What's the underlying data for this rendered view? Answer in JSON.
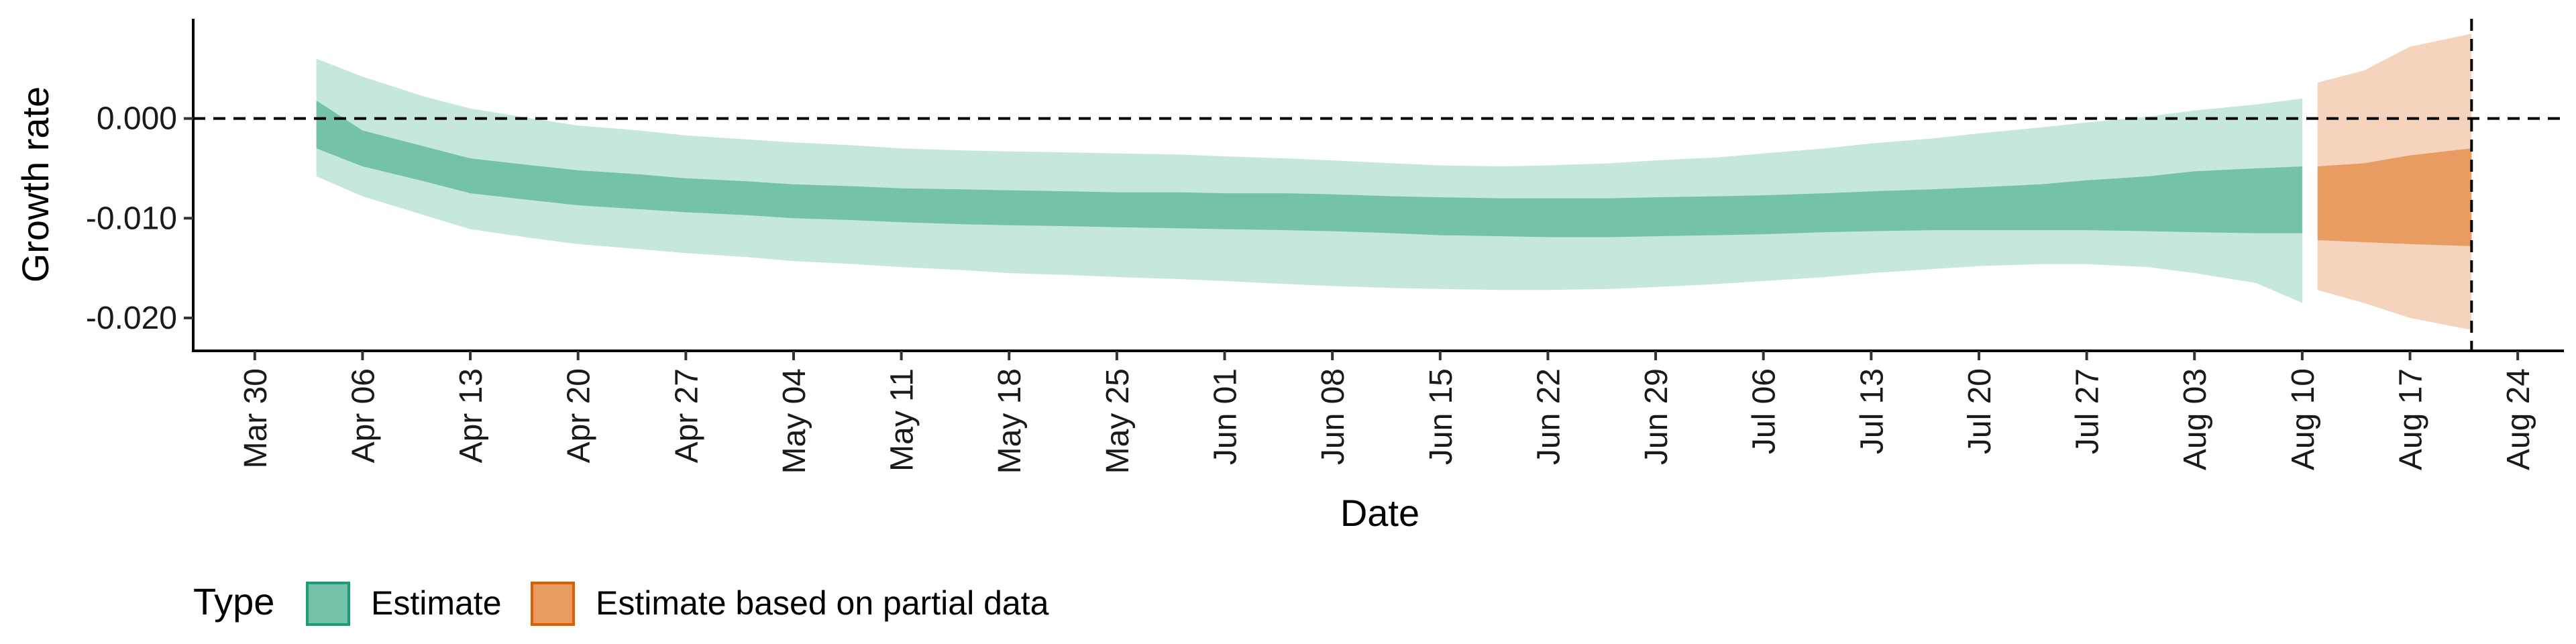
{
  "chart_data": {
    "type": "area",
    "title": "",
    "xlabel": "Date",
    "ylabel": "Growth rate",
    "x_ticks": [
      "Mar 30",
      "Apr 06",
      "Apr 13",
      "Apr 20",
      "Apr 27",
      "May 04",
      "May 11",
      "May 18",
      "May 25",
      "Jun 01",
      "Jun 08",
      "Jun 15",
      "Jun 22",
      "Jun 29",
      "Jul 06",
      "Jul 13",
      "Jul 20",
      "Jul 27",
      "Aug 03",
      "Aug 10",
      "Aug 17",
      "Aug 24"
    ],
    "y_ticks": [
      0.0,
      -0.01,
      -0.02
    ],
    "y_tick_labels": [
      "0.000",
      "-0.010",
      "-0.020"
    ],
    "ylim": [
      -0.0233,
      0.01
    ],
    "xlim": [
      "2020-03-26",
      "2020-08-27"
    ],
    "grid": false,
    "reference_lines": [
      {
        "axis": "y",
        "value": 0.0,
        "style": "dashed"
      },
      {
        "axis": "x",
        "value": "2020-08-21",
        "style": "dashed"
      }
    ],
    "legend": {
      "title": "Type",
      "placement": "bottom-left",
      "entries": [
        {
          "label": "Estimate",
          "fill": "#73C2A9",
          "border": "#1B9E77"
        },
        {
          "label": "Estimate based on partial data",
          "fill": "#E89C62",
          "border": "#D95F02"
        }
      ]
    },
    "series": [
      {
        "name": "Estimate",
        "colors": {
          "inner": "#73C2A9",
          "outer": "#C6E7DD"
        },
        "x": [
          "2020-04-03",
          "2020-04-06",
          "2020-04-10",
          "2020-04-13",
          "2020-04-17",
          "2020-04-20",
          "2020-04-24",
          "2020-04-27",
          "2020-05-01",
          "2020-05-04",
          "2020-05-08",
          "2020-05-11",
          "2020-05-15",
          "2020-05-18",
          "2020-05-22",
          "2020-05-25",
          "2020-05-29",
          "2020-06-01",
          "2020-06-05",
          "2020-06-08",
          "2020-06-12",
          "2020-06-15",
          "2020-06-19",
          "2020-06-22",
          "2020-06-26",
          "2020-06-29",
          "2020-07-03",
          "2020-07-06",
          "2020-07-10",
          "2020-07-13",
          "2020-07-17",
          "2020-07-20",
          "2020-07-24",
          "2020-07-27",
          "2020-07-31",
          "2020-08-03",
          "2020-08-07",
          "2020-08-10"
        ],
        "inner_upper": [
          0.0018,
          -0.0012,
          -0.0028,
          -0.004,
          -0.0047,
          -0.0052,
          -0.0056,
          -0.006,
          -0.0063,
          -0.0066,
          -0.0068,
          -0.007,
          -0.0071,
          -0.0072,
          -0.0073,
          -0.0074,
          -0.0074,
          -0.0075,
          -0.0075,
          -0.0076,
          -0.0078,
          -0.0079,
          -0.008,
          -0.008,
          -0.008,
          -0.0079,
          -0.0078,
          -0.0077,
          -0.0075,
          -0.0073,
          -0.0071,
          -0.0069,
          -0.0066,
          -0.0062,
          -0.0058,
          -0.0053,
          -0.005,
          -0.0048
        ],
        "inner_lower": [
          -0.003,
          -0.0048,
          -0.0063,
          -0.0075,
          -0.0082,
          -0.0087,
          -0.0091,
          -0.0094,
          -0.0097,
          -0.01,
          -0.0102,
          -0.0104,
          -0.0106,
          -0.0107,
          -0.0108,
          -0.0109,
          -0.011,
          -0.0111,
          -0.0112,
          -0.0113,
          -0.0115,
          -0.0117,
          -0.0118,
          -0.0119,
          -0.0119,
          -0.0118,
          -0.0117,
          -0.0116,
          -0.0114,
          -0.0113,
          -0.0112,
          -0.0112,
          -0.0112,
          -0.0112,
          -0.0113,
          -0.0114,
          -0.0115,
          -0.0115
        ],
        "outer_upper": [
          0.006,
          0.0042,
          0.0022,
          0.001,
          0.0,
          -0.0007,
          -0.0012,
          -0.0017,
          -0.0021,
          -0.0024,
          -0.0027,
          -0.003,
          -0.0032,
          -0.0033,
          -0.0034,
          -0.0035,
          -0.0036,
          -0.0038,
          -0.004,
          -0.0042,
          -0.0045,
          -0.0047,
          -0.0048,
          -0.0047,
          -0.0045,
          -0.0042,
          -0.0039,
          -0.0035,
          -0.003,
          -0.0025,
          -0.002,
          -0.0015,
          -0.0009,
          -0.0004,
          0.0002,
          0.0008,
          0.0014,
          0.002
        ],
        "outer_lower": [
          -0.0058,
          -0.0078,
          -0.0097,
          -0.0111,
          -0.012,
          -0.0126,
          -0.0131,
          -0.0135,
          -0.0139,
          -0.0143,
          -0.0146,
          -0.0149,
          -0.0152,
          -0.0155,
          -0.0157,
          -0.0159,
          -0.0161,
          -0.0163,
          -0.0166,
          -0.0168,
          -0.017,
          -0.0171,
          -0.0172,
          -0.0172,
          -0.0171,
          -0.0169,
          -0.0166,
          -0.0163,
          -0.0159,
          -0.0155,
          -0.0151,
          -0.0148,
          -0.0146,
          -0.0146,
          -0.0149,
          -0.0155,
          -0.0165,
          -0.0185
        ]
      },
      {
        "name": "Estimate based on partial data",
        "colors": {
          "inner": "#E89C62",
          "outer": "#F5D3BC"
        },
        "x": [
          "2020-08-11",
          "2020-08-14",
          "2020-08-17",
          "2020-08-21"
        ],
        "inner_upper": [
          -0.0048,
          -0.0045,
          -0.0037,
          -0.003
        ],
        "inner_lower": [
          -0.0122,
          -0.0124,
          -0.0126,
          -0.0128
        ],
        "outer_upper": [
          0.0036,
          0.0048,
          0.0072,
          0.0085
        ],
        "outer_lower": [
          -0.0172,
          -0.0185,
          -0.02,
          -0.0212
        ]
      }
    ]
  }
}
